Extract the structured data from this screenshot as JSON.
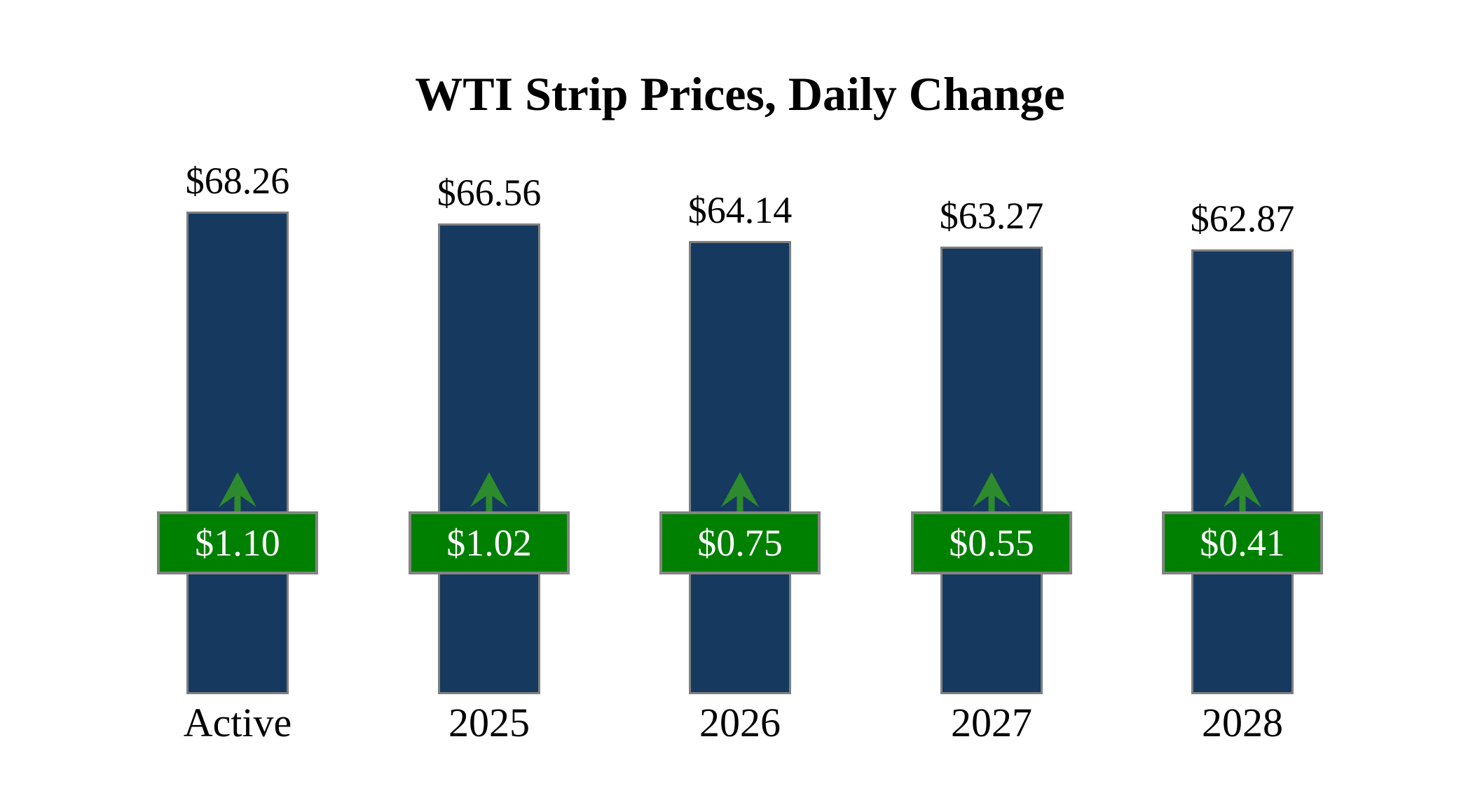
{
  "title": "WTI Strip Prices, Daily Change",
  "colors": {
    "background": "#ffffff",
    "bar_fill": "#16395F",
    "bar_border": "#808080",
    "badge_fill": "#008000",
    "badge_border": "#848484",
    "badge_text": "#ffffff",
    "arrow_green": "#2D8B2D",
    "label_text": "#000000"
  },
  "chart_data": {
    "type": "bar",
    "title": "WTI Strip Prices, Daily Change",
    "categories": [
      "Active",
      "2025",
      "2026",
      "2027",
      "2028"
    ],
    "series": [
      {
        "name": "WTI Strip Price",
        "values": [
          68.26,
          66.56,
          64.14,
          63.27,
          62.87
        ],
        "labels": [
          "$68.26",
          "$66.56",
          "$64.14",
          "$63.27",
          "$62.87"
        ]
      },
      {
        "name": "Daily Change",
        "values": [
          1.1,
          1.02,
          0.75,
          0.55,
          0.41
        ],
        "labels": [
          "$1.10",
          "$1.02",
          "$0.75",
          "$0.55",
          "$0.41"
        ],
        "direction": "up"
      }
    ],
    "ylim": [
      0,
      68.26
    ],
    "grid": false,
    "legend": false,
    "axes_hidden": true,
    "annotations": "price labels above bars; green up-arrow and daily-change badge overlaid on each bar"
  }
}
